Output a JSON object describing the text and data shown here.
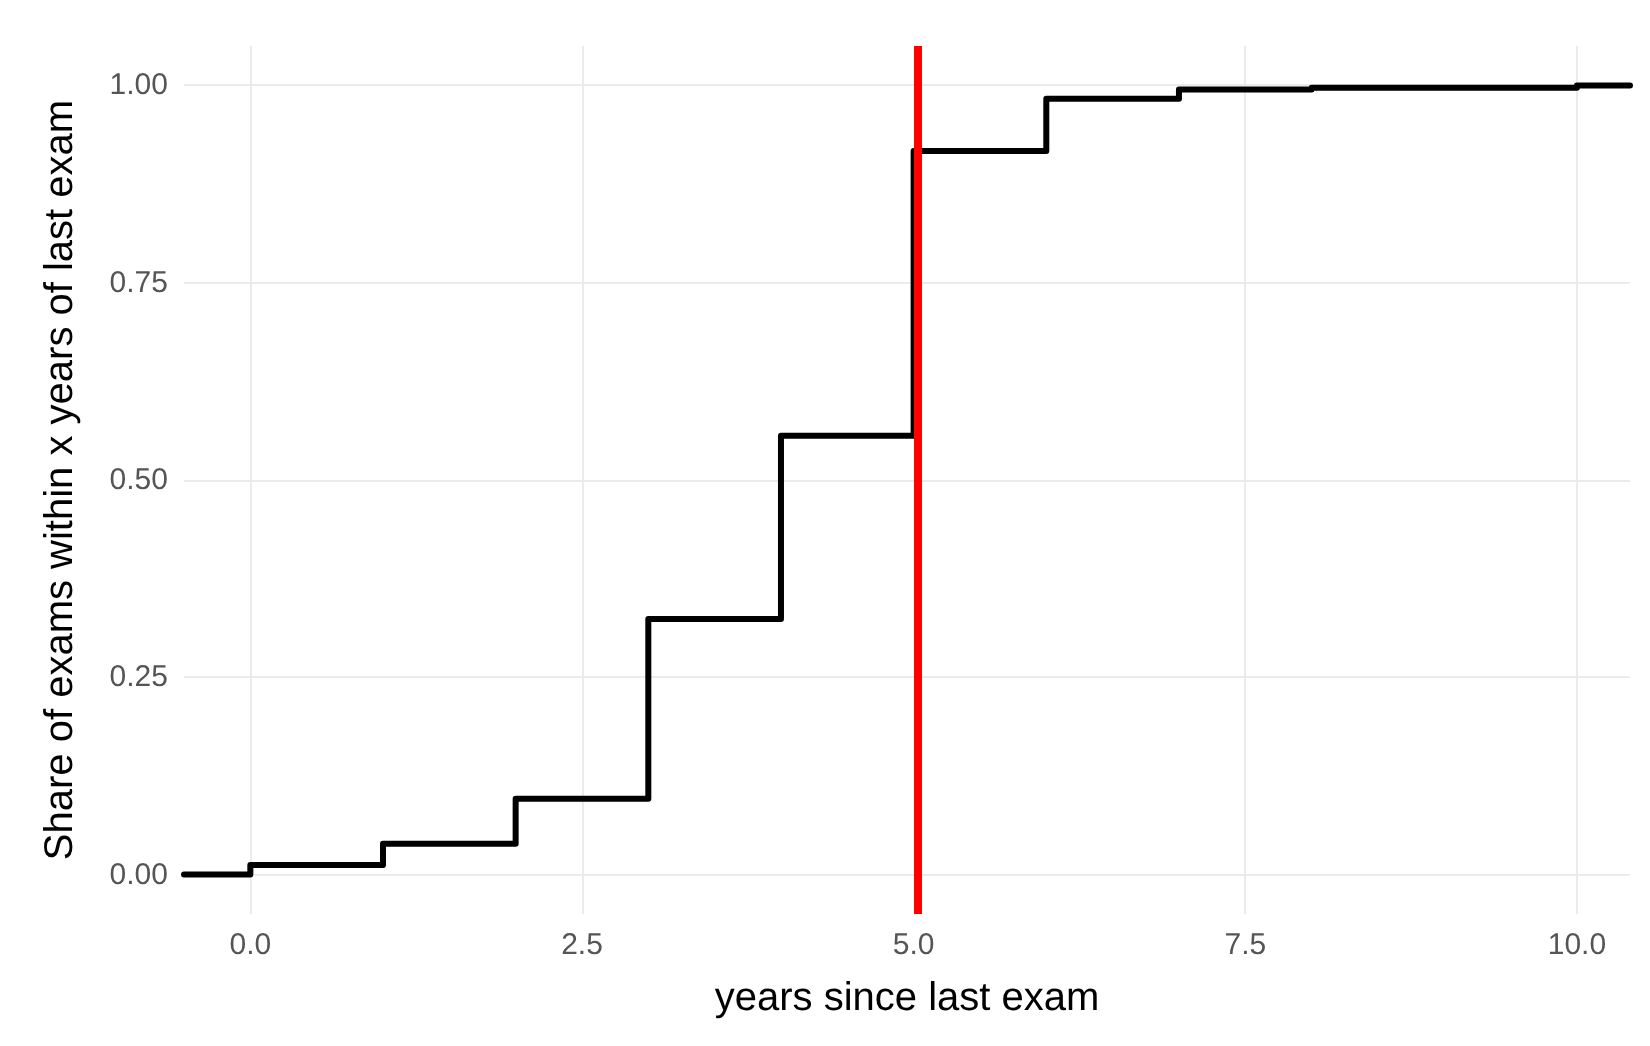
{
  "chart_data": {
    "type": "step",
    "xlabel": "years since last exam",
    "ylabel": "Share of exams within x years of last exam",
    "x": [
      -0.5,
      0,
      1,
      2,
      3,
      4,
      5,
      6,
      7,
      8,
      10,
      10.4
    ],
    "series": [
      {
        "color": "#000000",
        "values": [
          0,
          0.012,
          0.039,
          0.096,
          0.324,
          0.556,
          0.917,
          0.983,
          0.995,
          0.997,
          1.0,
          1.0
        ]
      }
    ],
    "xlim": [
      -0.5,
      10.4
    ],
    "ylim": [
      -0.05,
      1.05
    ],
    "xticks": [
      {
        "value": 0,
        "label": "0.0"
      },
      2.5,
      {
        "value": 5,
        "label": "5.0"
      },
      7.5,
      {
        "value": 10,
        "label": "10.0"
      }
    ],
    "yticks": [
      {
        "value": 0,
        "label": "0.00"
      },
      0.25,
      {
        "value": 0.5,
        "label": "0.50"
      },
      0.75,
      {
        "value": 1,
        "label": "1.00"
      }
    ],
    "ref_lines": [
      {
        "axis": "x",
        "value": 5.03,
        "color": "#ff0000"
      }
    ],
    "grid": true,
    "marker": "none",
    "line_style": "solid"
  }
}
